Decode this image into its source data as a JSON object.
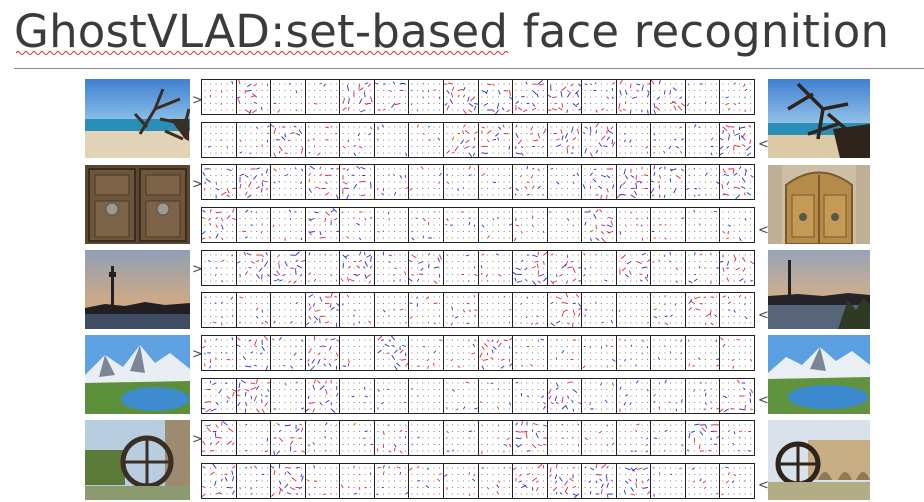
{
  "slide": {
    "title": "GhostVLAD:set-based face recognition"
  },
  "figure": {
    "cells_per_strip": 16,
    "arrow_glyph_left": ">",
    "arrow_glyph_right": "<",
    "colors": {
      "positive": "#e8203a",
      "negative": "#2a2ae0",
      "dots": "#555555",
      "border": "#222222"
    },
    "rows": [
      {
        "left_image": "beach-driftwood-photo",
        "right_image": "beach-driftwood-closeup-photo"
      },
      {
        "left_image": "carved-wooden-door-knockers-photo",
        "right_image": "wooden-door-facade-photo"
      },
      {
        "left_image": "tower-skyline-dusk-photo",
        "right_image": "river-skyline-dusk-photo"
      },
      {
        "left_image": "alpine-lake-mountains-photo",
        "right_image": "alpine-lake-mountains-wide-photo"
      },
      {
        "left_image": "waterwheel-river-photo",
        "right_image": "waterwheel-bridge-photo"
      }
    ]
  }
}
